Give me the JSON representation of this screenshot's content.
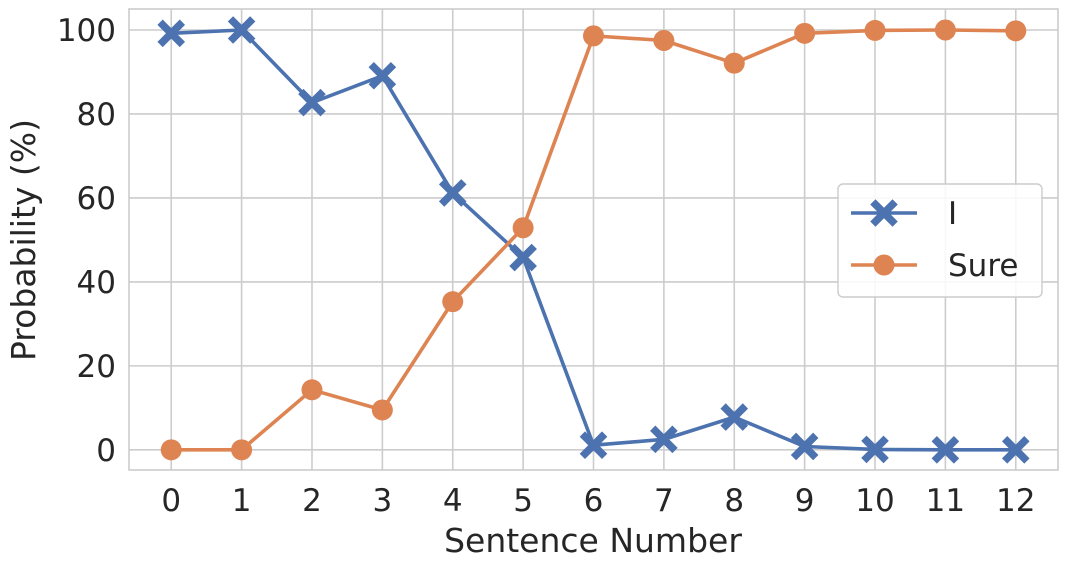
{
  "chart_data": {
    "type": "line",
    "title": "",
    "xlabel": "Sentence Number",
    "ylabel": "Probability (%)",
    "x": [
      0,
      1,
      2,
      3,
      4,
      5,
      6,
      7,
      8,
      9,
      10,
      11,
      12
    ],
    "x_ticks": [
      0,
      1,
      2,
      3,
      4,
      5,
      6,
      7,
      8,
      9,
      10,
      11,
      12
    ],
    "y_ticks": [
      0,
      20,
      40,
      60,
      80,
      100
    ],
    "xlim": [
      -0.6,
      12.6
    ],
    "ylim": [
      -4.8,
      105
    ],
    "grid": true,
    "legend_position": "center-right",
    "series": [
      {
        "name": "I",
        "marker": "x",
        "color": "#4c72b0",
        "values": [
          99.2,
          100.0,
          82.7,
          89.1,
          61.2,
          45.8,
          1.1,
          2.5,
          7.8,
          0.8,
          0.1,
          0.0,
          0.0
        ]
      },
      {
        "name": "Sure",
        "marker": "o",
        "color": "#dd8452",
        "values": [
          0.0,
          0.0,
          14.3,
          9.5,
          35.3,
          52.9,
          98.6,
          97.5,
          92.1,
          99.2,
          99.9,
          100.0,
          99.8
        ]
      }
    ]
  }
}
